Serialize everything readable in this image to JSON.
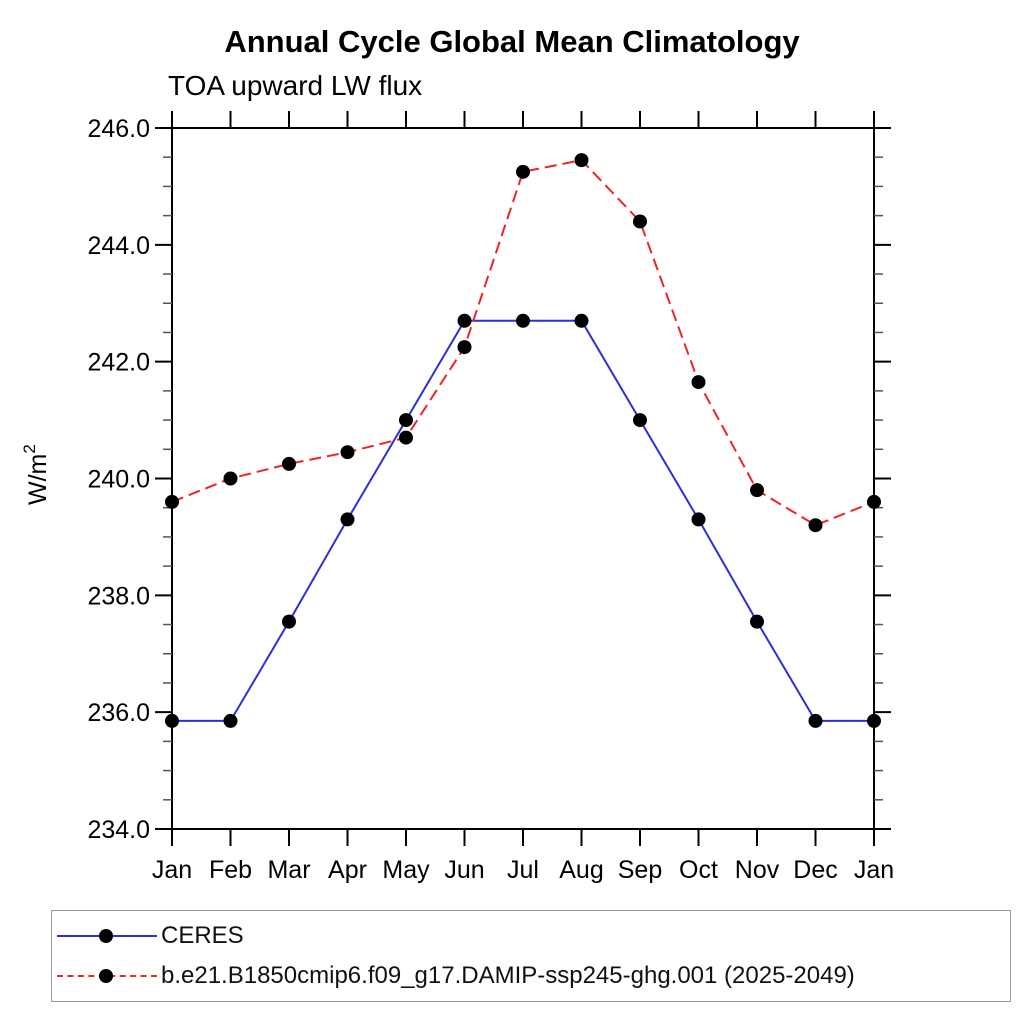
{
  "title": "Annual Cycle Global Mean Climatology",
  "subtitle": "TOA upward LW flux",
  "chart_data": {
    "type": "line",
    "title": "Annual Cycle Global Mean Climatology",
    "subtitle": "TOA upward LW flux",
    "x_categories": [
      "Jan",
      "Feb",
      "Mar",
      "Apr",
      "May",
      "Jun",
      "Jul",
      "Aug",
      "Sep",
      "Oct",
      "Nov",
      "Dec",
      "Jan"
    ],
    "ylabel_main": "W/m",
    "ylabel_sup": "2",
    "ylim": [
      234.0,
      246.0
    ],
    "ytick_interval": 2.0,
    "yminor_interval": 0.5,
    "ytick_decimals": 1,
    "ytick_labels": [
      "234.0",
      "236.0",
      "238.0",
      "240.0",
      "242.0",
      "244.0",
      "246.0"
    ],
    "grid": false,
    "legend_position": "bottom-left",
    "frame_color": "#000000",
    "marker_color": "#000000",
    "series": [
      {
        "name": "CERES",
        "line_color": "#2e2ed8",
        "line_style": "solid",
        "values": [
          235.85,
          235.85,
          237.55,
          239.3,
          241.0,
          242.7,
          242.7,
          242.7,
          241.0,
          239.3,
          237.55,
          235.85,
          235.85
        ]
      },
      {
        "name": "b.e21.B1850cmip6.f09_g17.DAMIP-ssp245-ghg.001 (2025-2049)",
        "line_color": "#ee2424",
        "line_style": "dashed",
        "values": [
          239.6,
          240.0,
          240.25,
          240.45,
          240.7,
          242.25,
          245.25,
          245.45,
          244.4,
          241.65,
          239.8,
          239.2,
          239.6
        ]
      }
    ]
  }
}
